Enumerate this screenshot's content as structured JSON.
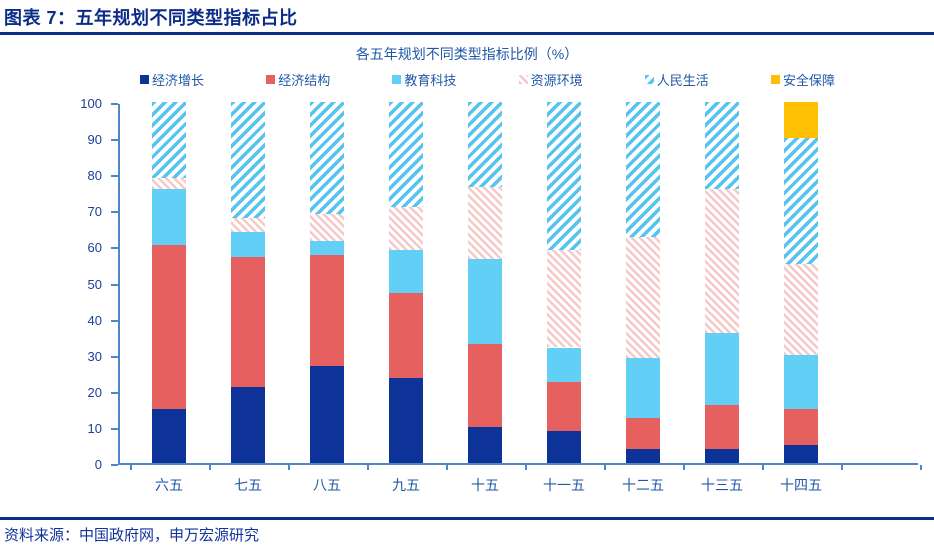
{
  "header": {
    "title": "图表 7：五年规划不同类型指标占比"
  },
  "footer": {
    "source": "资料来源：中国政府网，申万宏源研究"
  },
  "palette": {
    "header_navy": "#0b2d87",
    "text_blue": "#2058a8",
    "axis_steel_blue": "#4f87c4",
    "tick_label_blue": "#1c3f9b",
    "source_blue": "#10339e"
  },
  "chart_data": {
    "type": "bar",
    "stacked": true,
    "title": "各五年规划不同类型指标比例（%）",
    "xlabel": "",
    "ylabel": "",
    "ylim": [
      0,
      100
    ],
    "ytick_step": 10,
    "grid": false,
    "legend_position": "top",
    "categories": [
      "六五",
      "七五",
      "八五",
      "九五",
      "十五",
      "十一五",
      "十二五",
      "十三五",
      "十四五"
    ],
    "series": [
      {
        "name": "经济增长",
        "style": "solid",
        "color": "#0d3399",
        "values": [
          15,
          21,
          27,
          23.5,
          10,
          9,
          4,
          4,
          5
        ]
      },
      {
        "name": "经济结构",
        "style": "solid",
        "color": "#e5605e",
        "values": [
          45.5,
          36,
          30.5,
          23.5,
          23,
          13.5,
          8.5,
          12,
          10
        ]
      },
      {
        "name": "教育科技",
        "style": "solid",
        "color": "#62d0f6",
        "values": [
          15.5,
          7,
          4,
          12,
          23.5,
          9.5,
          16.5,
          20,
          15
        ]
      },
      {
        "name": "资源环境",
        "style": "hatch-pink",
        "color": "#f6c9c8",
        "values": [
          3,
          4,
          7.5,
          12,
          20,
          27,
          33.5,
          40,
          25
        ]
      },
      {
        "name": "人民生活",
        "style": "hatch-blue",
        "color": "#56c4ef",
        "values": [
          21,
          32,
          31,
          29,
          23.5,
          41,
          37.5,
          24,
          35
        ]
      },
      {
        "name": "安全保障",
        "style": "solid",
        "color": "#ffc003",
        "values": [
          0,
          0,
          0,
          0,
          0,
          0,
          0,
          0,
          10
        ]
      }
    ]
  }
}
